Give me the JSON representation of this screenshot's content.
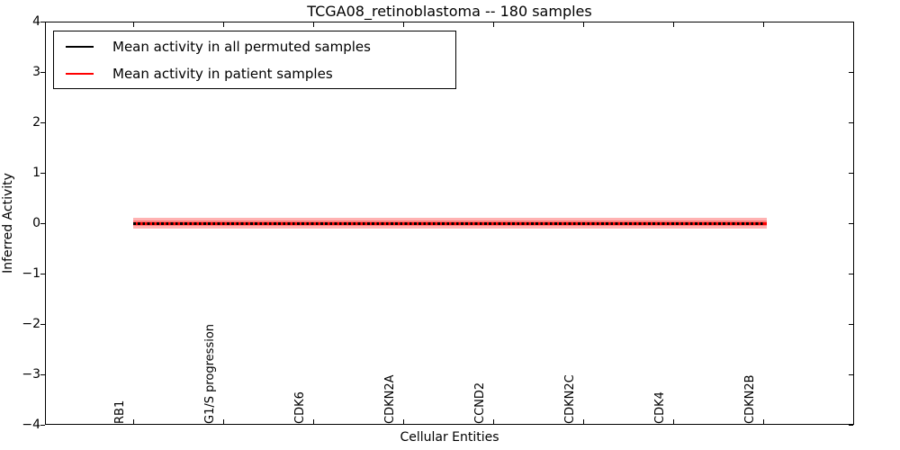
{
  "figure": {
    "title": "TCGA08_retinoblastoma -- 180 samples"
  },
  "chart_data": {
    "type": "line",
    "title": "TCGA08_retinoblastoma -- 180 samples",
    "xlabel": "Cellular Entities",
    "ylabel": "Inferred Activity",
    "ylim": [
      -4,
      4
    ],
    "grid": false,
    "legend_position": "upper left",
    "background_color": "#ffffff",
    "yticks": [
      {
        "value": 4,
        "label": "4"
      },
      {
        "value": 3,
        "label": "3"
      },
      {
        "value": 2,
        "label": "2"
      },
      {
        "value": 1,
        "label": "1"
      },
      {
        "value": 0,
        "label": "0"
      },
      {
        "value": -1,
        "label": "−1"
      },
      {
        "value": -2,
        "label": "−2"
      },
      {
        "value": -3,
        "label": "−3"
      },
      {
        "value": -4,
        "label": "−4"
      }
    ],
    "categories": [
      "RB1",
      "G1/S progression",
      "CDK6",
      "CDKN2A",
      "CCND2",
      "CDKN2C",
      "CDK4",
      "CDKN2B"
    ],
    "series": [
      {
        "name": "Mean activity in all permuted samples",
        "color": "#000000",
        "line_style": "dashed",
        "values": [
          0,
          0,
          0,
          0,
          0,
          0,
          0,
          0
        ]
      },
      {
        "name": "Mean activity in patient samples",
        "color": "#ff0000",
        "line_style": "solid",
        "values": [
          0,
          0,
          0,
          0,
          0,
          0,
          0,
          0
        ]
      }
    ],
    "band": {
      "around": "Mean activity in patient samples",
      "lower": -0.1,
      "upper": 0.1,
      "color": "rgba(255,0,0,0.3)"
    }
  }
}
